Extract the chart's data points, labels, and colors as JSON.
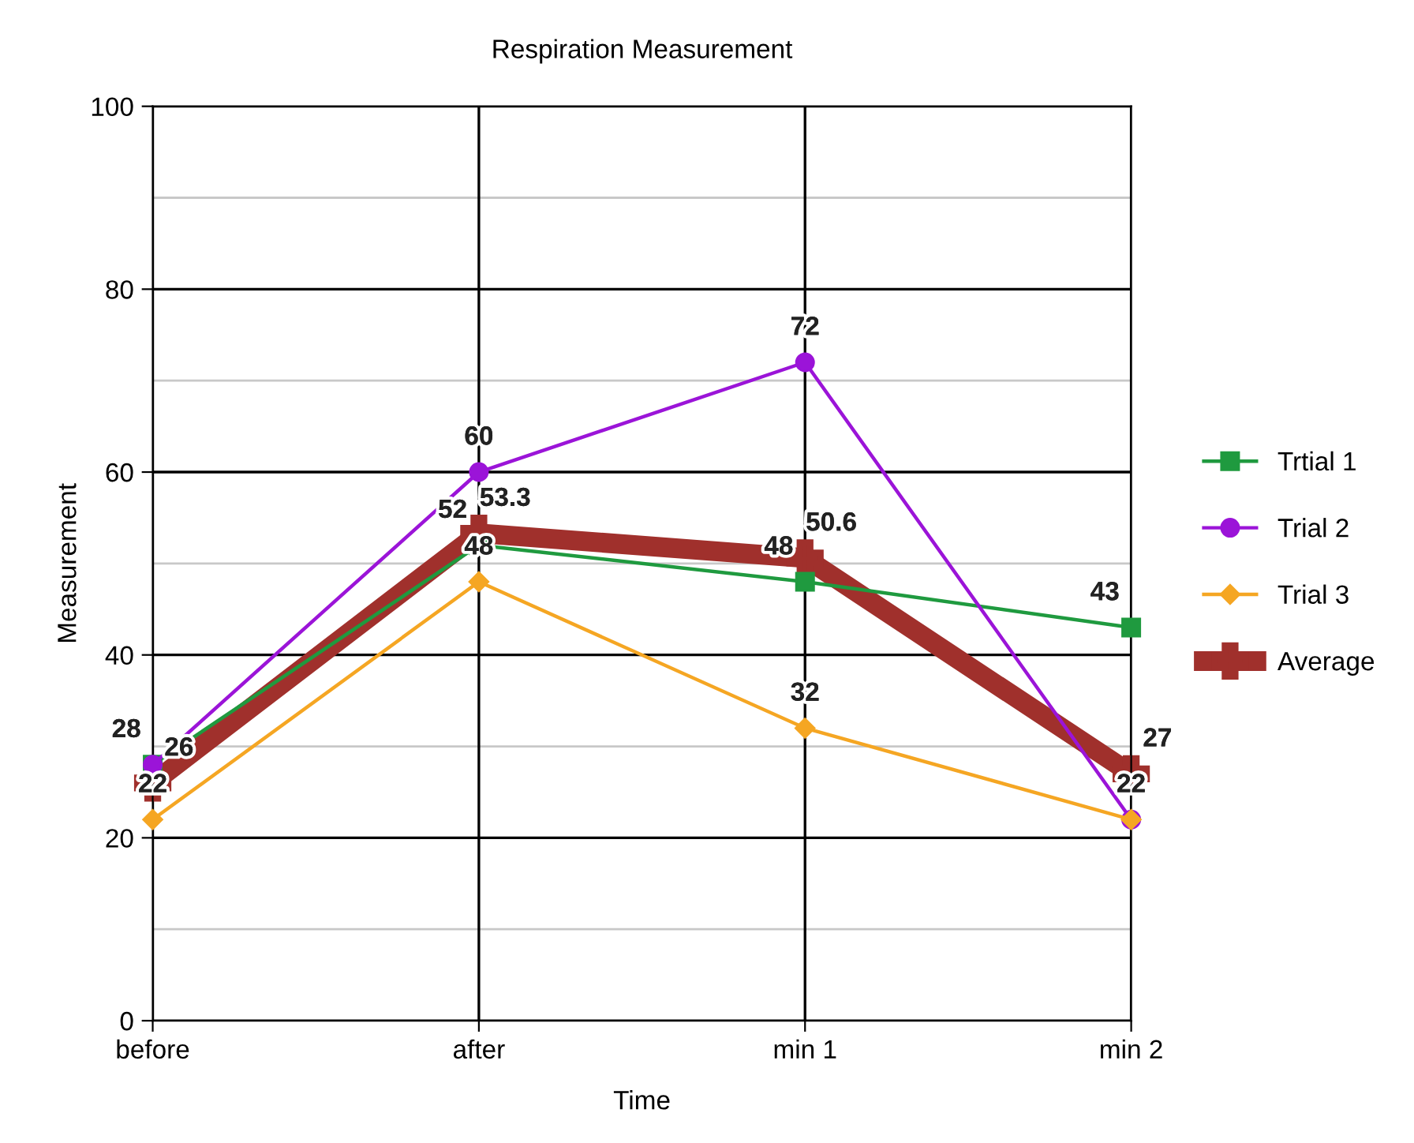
{
  "chart_data": {
    "type": "line",
    "title": "Respiration Measurement",
    "xlabel": "Time",
    "ylabel": "Measurement",
    "categories": [
      "before",
      "after",
      "min 1",
      "min 2"
    ],
    "series": [
      {
        "name": "Trtial 1",
        "color": "#1f9a3f",
        "marker": "square",
        "values": [
          28,
          52,
          48,
          43
        ],
        "value_labels": [
          "28",
          "52",
          "48",
          "43"
        ]
      },
      {
        "name": "Trial 2",
        "color": "#9b14d8",
        "marker": "circle",
        "values": [
          28,
          60,
          72,
          22
        ],
        "value_labels": [
          null,
          "60",
          "72",
          "22"
        ]
      },
      {
        "name": "Trial 3",
        "color": "#f5a623",
        "marker": "diamond",
        "values": [
          22,
          48,
          32,
          22
        ],
        "value_labels": [
          "22",
          "48",
          "32",
          null
        ]
      },
      {
        "name": "Average",
        "color": "#a0302c",
        "marker": "cross",
        "values": [
          26,
          53.3,
          50.6,
          27
        ],
        "value_labels": [
          "26",
          "53.3",
          "50.6",
          "27"
        ]
      }
    ],
    "ylim": [
      0,
      100
    ],
    "yticks": [
      0,
      {
        "value": 10,
        "label": null
      },
      20,
      {
        "value": 30,
        "label": null
      },
      40,
      {
        "value": 50,
        "label": null
      },
      60,
      {
        "value": 70,
        "label": null
      },
      80,
      {
        "value": 90,
        "label": null
      },
      100
    ],
    "grid": true,
    "legend": "right"
  }
}
